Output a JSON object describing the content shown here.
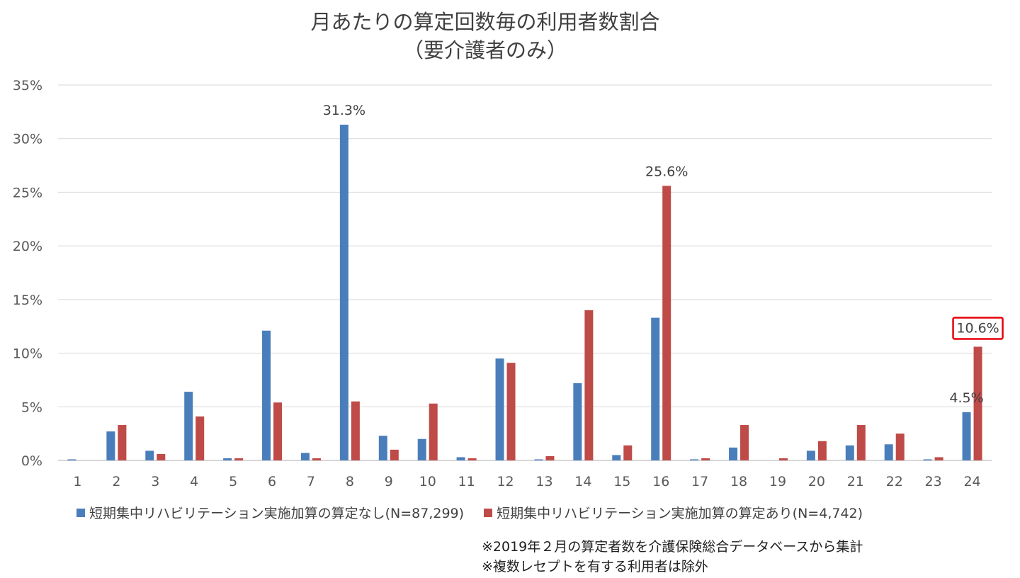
{
  "title": {
    "line1": "月あたりの算定回数毎の利用者数割合",
    "line2": "（要介護者のみ）"
  },
  "notes": [
    "※2019年２月の算定者数を介護保険総合データベースから集計",
    "※複数レセプトを有する利用者は除外"
  ],
  "chart_data": {
    "type": "bar",
    "title": "月あたりの算定回数毎の利用者数割合（要介護者のみ）",
    "xlabel": "",
    "ylabel": "",
    "ylim": [
      0,
      35
    ],
    "yticks": [
      "0%",
      "5%",
      "10%",
      "15%",
      "20%",
      "25%",
      "30%",
      "35%"
    ],
    "grid": true,
    "legend_position": "bottom",
    "categories": [
      "1",
      "2",
      "3",
      "4",
      "5",
      "6",
      "7",
      "8",
      "9",
      "10",
      "11",
      "12",
      "13",
      "14",
      "15",
      "16",
      "17",
      "18",
      "19",
      "20",
      "21",
      "22",
      "23",
      "24"
    ],
    "series": [
      {
        "name": "短期集中リハビリテーション実施加算の算定なし(N=87,299)",
        "color": "#4A7EBB",
        "values": [
          0.1,
          2.7,
          0.9,
          6.4,
          0.2,
          12.1,
          0.7,
          31.3,
          2.3,
          2.0,
          0.3,
          9.5,
          0.1,
          7.2,
          0.5,
          13.3,
          0.1,
          1.2,
          0.0,
          0.9,
          1.4,
          1.5,
          0.1,
          4.5
        ]
      },
      {
        "name": "短期集中リハビリテーション実施加算の算定あり(N=4,742)",
        "color": "#BE4B48",
        "values": [
          0.0,
          3.3,
          0.6,
          4.1,
          0.2,
          5.4,
          0.2,
          5.5,
          1.0,
          5.3,
          0.2,
          9.1,
          0.4,
          14.0,
          1.4,
          25.6,
          0.2,
          3.3,
          0.2,
          1.8,
          3.3,
          2.5,
          0.3,
          10.6
        ]
      }
    ],
    "data_labels": [
      {
        "series": 0,
        "category": "8",
        "text": "31.3%",
        "highlight": false
      },
      {
        "series": 1,
        "category": "16",
        "text": "25.6%",
        "highlight": false
      },
      {
        "series": 0,
        "category": "24",
        "text": "4.5%",
        "highlight": false
      },
      {
        "series": 1,
        "category": "24",
        "text": "10.6%",
        "highlight": true
      }
    ],
    "highlight_color": "#E8000B"
  }
}
